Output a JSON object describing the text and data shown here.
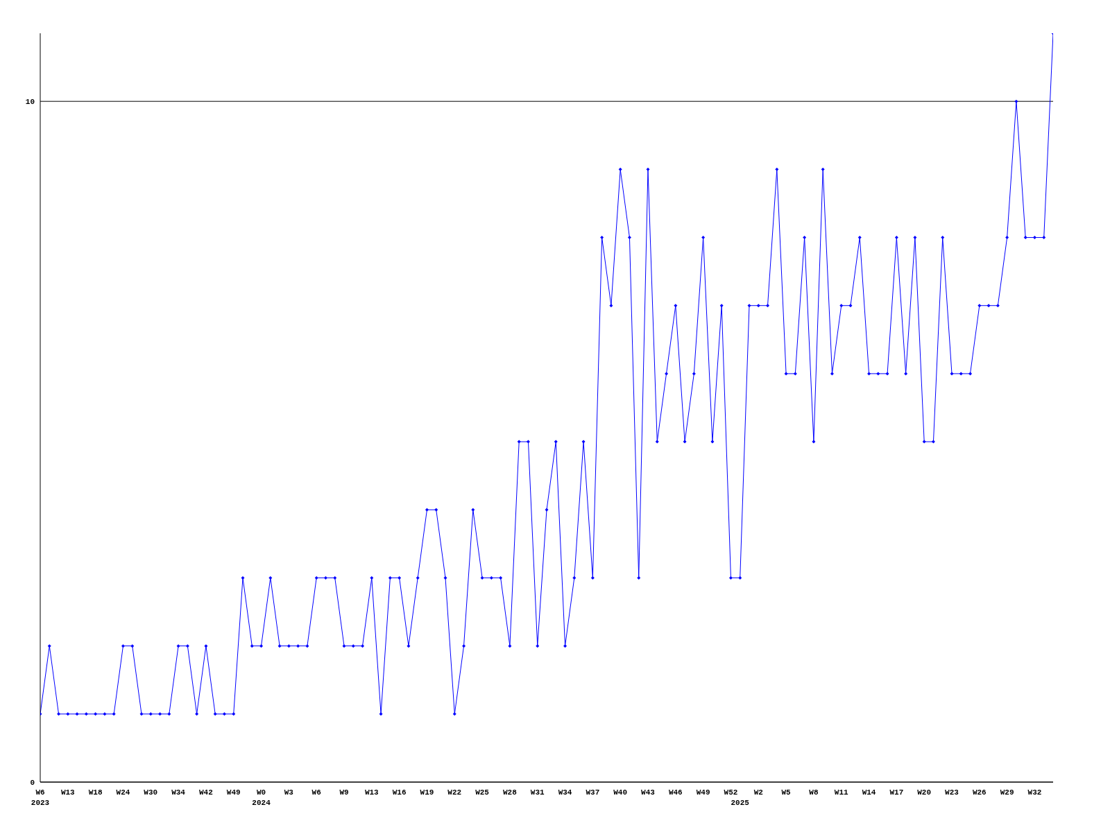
{
  "chart_data": {
    "type": "line",
    "categories": [
      "W6\n2023",
      null,
      null,
      "W13",
      null,
      null,
      "W18",
      null,
      null,
      "W24",
      null,
      null,
      "W30",
      null,
      null,
      "W34",
      null,
      null,
      "W42",
      null,
      null,
      "W49",
      null,
      null,
      "W0\n2024",
      null,
      null,
      "W3",
      null,
      null,
      "W6",
      null,
      null,
      "W9",
      null,
      null,
      "W13",
      null,
      null,
      "W16",
      null,
      null,
      "W19",
      null,
      null,
      "W22",
      null,
      null,
      "W25",
      null,
      null,
      "W28",
      null,
      null,
      "W31",
      null,
      null,
      "W34",
      null,
      null,
      "W37",
      null,
      null,
      "W40",
      null,
      null,
      "W43",
      null,
      null,
      "W46",
      null,
      null,
      "W49",
      null,
      null,
      "W52",
      "\n2025",
      null,
      "W2",
      null,
      null,
      "W5",
      null,
      null,
      "W8",
      null,
      null,
      "W11",
      null,
      null,
      "W14",
      null,
      null,
      "W17",
      null,
      null,
      "W20",
      null,
      null,
      "W23",
      null,
      null,
      "W26",
      null,
      null,
      "W29",
      null,
      null,
      "W32",
      null,
      null
    ],
    "series": [
      {
        "color": "#0000ff",
        "values": [
          1,
          2,
          1,
          1,
          1,
          1,
          1,
          1,
          1,
          2,
          2,
          1,
          1,
          1,
          1,
          2,
          2,
          1,
          2,
          1,
          1,
          1,
          3,
          2,
          2,
          3,
          2,
          2,
          2,
          2,
          3,
          3,
          3,
          2,
          2,
          2,
          3,
          1,
          3,
          3,
          2,
          3,
          4,
          4,
          3,
          1,
          2,
          4,
          3,
          3,
          3,
          2,
          5,
          5,
          2,
          4,
          5,
          2,
          3,
          5,
          3,
          8,
          7,
          9,
          8,
          3,
          9,
          5,
          6,
          7,
          5,
          6,
          8,
          5,
          7,
          3,
          3,
          7,
          7,
          7,
          9,
          6,
          6,
          8,
          5,
          9,
          6,
          7,
          7,
          8,
          6,
          6,
          6,
          8,
          6,
          8,
          5,
          5,
          8,
          6,
          6,
          6,
          7,
          7,
          7,
          8,
          10,
          8,
          8,
          8,
          11
        ]
      }
    ],
    "ylim": [
      0,
      11
    ],
    "yticks": [
      0,
      10
    ],
    "grid": "y",
    "marker": "diamond",
    "line_style": "solid"
  }
}
